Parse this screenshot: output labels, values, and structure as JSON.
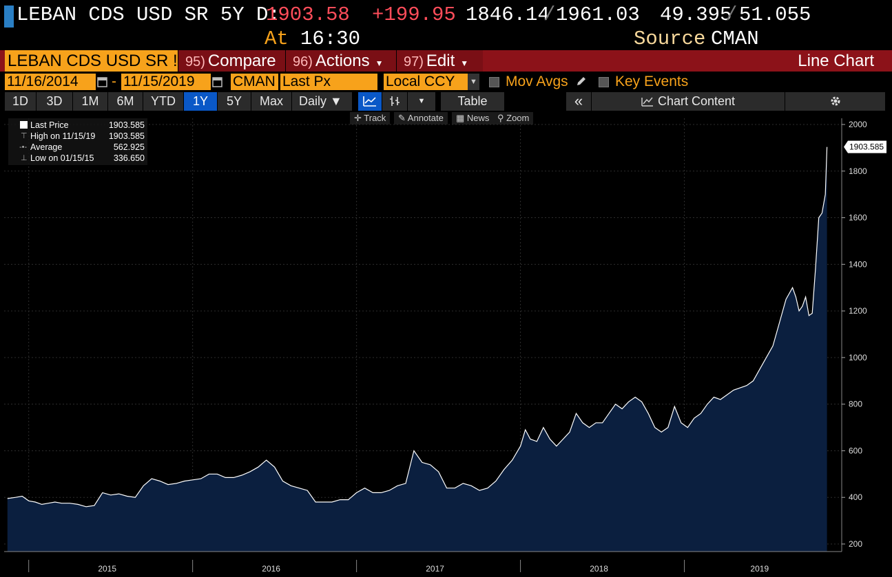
{
  "header": {
    "security": "LEBAN CDS USD SR 5Y D:",
    "last": "1903.58",
    "change": "+199.95",
    "low_high_low": "1846.14",
    "low_high_high": "1961.03",
    "sep": "/",
    "bid": "49.395",
    "ask": "51.055",
    "at_label": "At",
    "time": "16:30",
    "source_label": "Source",
    "source": "CMAN"
  },
  "function_bar": {
    "security_box": "LEBAN CDS USD SR !",
    "compare_num": "95)",
    "compare": "Compare",
    "actions_num": "96)",
    "actions": "Actions",
    "edit_num": "97)",
    "edit": "Edit",
    "title": "Line Chart"
  },
  "params": {
    "start_date": "11/16/2014",
    "dash": "-",
    "end_date": "11/15/2019",
    "source": "CMAN",
    "field": "Last Px",
    "currency": "Local CCY",
    "mov_avgs": "Mov Avgs",
    "key_events": "Key Events"
  },
  "range_buttons": [
    "1D",
    "3D",
    "1M",
    "6M",
    "YTD",
    "1Y",
    "5Y",
    "Max"
  ],
  "range_selected": "1Y",
  "periodicity": "Daily",
  "table_label": "Table",
  "chart_content_label": "Chart Content",
  "toolbar": {
    "track": "Track",
    "annotate": "Annotate",
    "news": "News",
    "zoom": "Zoom"
  },
  "legend": [
    {
      "label": "Last Price",
      "value": "1903.585"
    },
    {
      "label": "High on 11/15/19",
      "value": "1903.585"
    },
    {
      "label": "Average",
      "value": "562.925"
    },
    {
      "label": "Low on 01/15/15",
      "value": "336.650"
    }
  ],
  "colors": {
    "accent_orange": "#f7a21b",
    "negative_red": "#ff4d5a",
    "function_bar_red": "#8c1219",
    "selected_blue": "#0a58c7",
    "area_fill": "#0b1f3f",
    "line": "#ffffff"
  },
  "chart_data": {
    "type": "area",
    "last_label": "1903.585",
    "ylim": [
      200,
      2000
    ],
    "y_ticks": [
      200,
      400,
      600,
      800,
      1000,
      1200,
      1400,
      1600,
      1800,
      2000
    ],
    "x_ticks": [
      "2015",
      "2016",
      "2017",
      "2018",
      "2019"
    ],
    "grid": true,
    "x": [
      2014.87,
      2014.92,
      2014.96,
      2015.0,
      2015.04,
      2015.08,
      2015.12,
      2015.16,
      2015.2,
      2015.25,
      2015.3,
      2015.35,
      2015.4,
      2015.45,
      2015.5,
      2015.55,
      2015.6,
      2015.65,
      2015.7,
      2015.75,
      2015.8,
      2015.85,
      2015.9,
      2015.95,
      2016.0,
      2016.05,
      2016.1,
      2016.15,
      2016.2,
      2016.25,
      2016.3,
      2016.35,
      2016.4,
      2016.45,
      2016.5,
      2016.55,
      2016.6,
      2016.65,
      2016.7,
      2016.75,
      2016.8,
      2016.85,
      2016.9,
      2016.95,
      2017.0,
      2017.05,
      2017.1,
      2017.15,
      2017.2,
      2017.25,
      2017.3,
      2017.35,
      2017.4,
      2017.45,
      2017.5,
      2017.55,
      2017.6,
      2017.65,
      2017.7,
      2017.75,
      2017.8,
      2017.85,
      2017.9,
      2017.95,
      2018.0,
      2018.03,
      2018.06,
      2018.1,
      2018.14,
      2018.18,
      2018.22,
      2018.26,
      2018.3,
      2018.34,
      2018.38,
      2018.42,
      2018.46,
      2018.5,
      2018.54,
      2018.58,
      2018.62,
      2018.66,
      2018.7,
      2018.74,
      2018.78,
      2018.82,
      2018.86,
      2018.9,
      2018.94,
      2018.98,
      2019.02,
      2019.06,
      2019.1,
      2019.14,
      2019.18,
      2019.22,
      2019.26,
      2019.3,
      2019.34,
      2019.38,
      2019.42,
      2019.46,
      2019.5,
      2019.54,
      2019.58,
      2019.62,
      2019.66,
      2019.68,
      2019.7,
      2019.72,
      2019.74,
      2019.76,
      2019.78,
      2019.8,
      2019.82,
      2019.84,
      2019.86,
      2019.87
    ],
    "values": [
      395,
      400,
      405,
      385,
      380,
      370,
      375,
      380,
      375,
      375,
      370,
      360,
      365,
      420,
      410,
      415,
      405,
      400,
      450,
      480,
      470,
      455,
      460,
      470,
      475,
      480,
      500,
      500,
      485,
      485,
      495,
      510,
      530,
      560,
      530,
      470,
      450,
      440,
      430,
      380,
      380,
      380,
      390,
      390,
      420,
      440,
      420,
      420,
      430,
      450,
      460,
      600,
      550,
      540,
      510,
      440,
      440,
      460,
      450,
      430,
      440,
      470,
      520,
      560,
      620,
      690,
      650,
      640,
      700,
      650,
      620,
      650,
      680,
      760,
      720,
      700,
      720,
      720,
      760,
      800,
      780,
      810,
      830,
      810,
      760,
      700,
      680,
      700,
      790,
      720,
      700,
      740,
      760,
      800,
      830,
      820,
      840,
      860,
      870,
      880,
      900,
      950,
      1000,
      1050,
      1150,
      1250,
      1300,
      1260,
      1200,
      1220,
      1260,
      1180,
      1190,
      1380,
      1600,
      1620,
      1700,
      1903.585
    ]
  }
}
